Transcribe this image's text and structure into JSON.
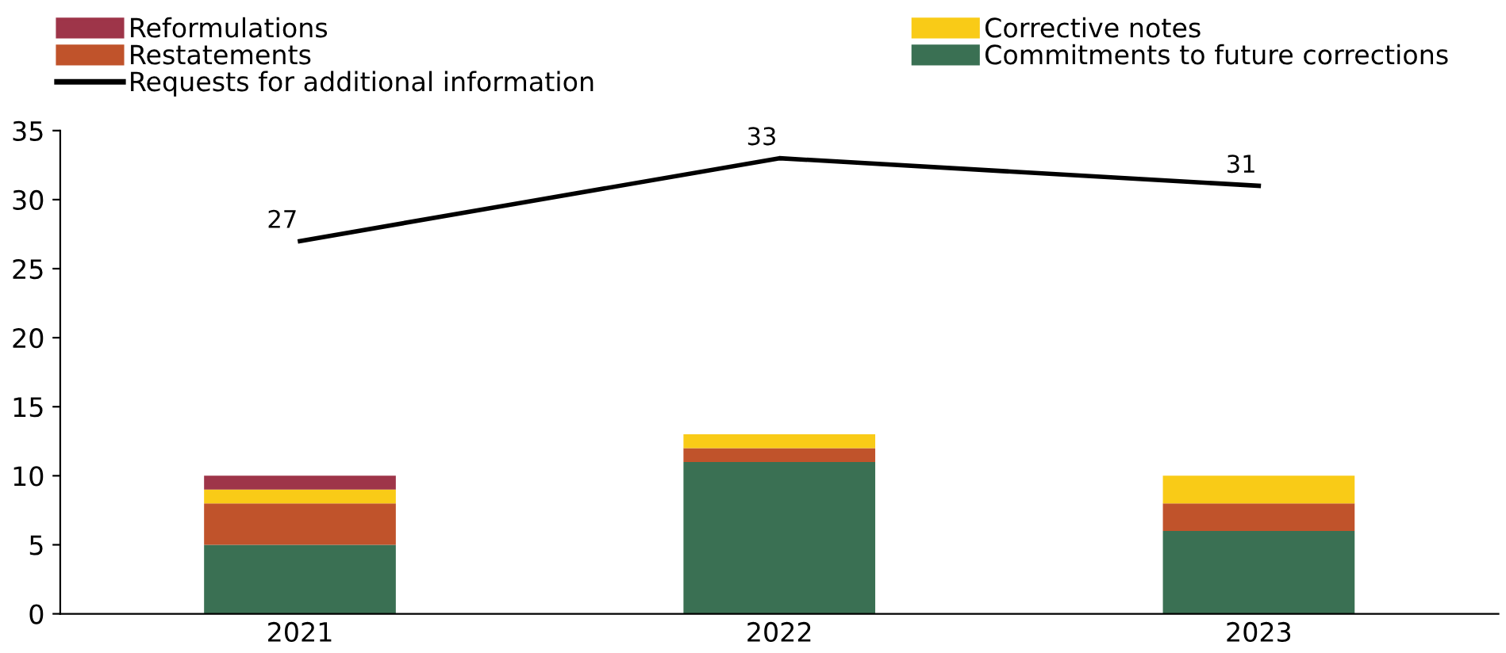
{
  "chart_data": {
    "type": "bar",
    "stacked": true,
    "categories": [
      "2021",
      "2022",
      "2023"
    ],
    "series": [
      {
        "name": "Commitments to future corrections",
        "color": "#3a7053",
        "values": [
          5,
          11,
          6
        ]
      },
      {
        "name": "Restatements",
        "color": "#c0532b",
        "values": [
          3,
          1,
          2
        ]
      },
      {
        "name": "Corrective notes",
        "color": "#f9cb17",
        "values": [
          1,
          1,
          2
        ]
      },
      {
        "name": "Reformulations",
        "color": "#9e3549",
        "values": [
          1,
          null,
          null
        ]
      },
      {
        "name": "Requests for additional information",
        "type": "line",
        "color": "#000000",
        "values": [
          27,
          33,
          31
        ],
        "value_labels": [
          "27",
          "33",
          "31"
        ]
      }
    ],
    "ylim": [
      0,
      35
    ],
    "yticks": [
      0,
      5,
      10,
      15,
      20,
      25,
      30,
      35
    ],
    "grid": false,
    "legend": "top"
  }
}
